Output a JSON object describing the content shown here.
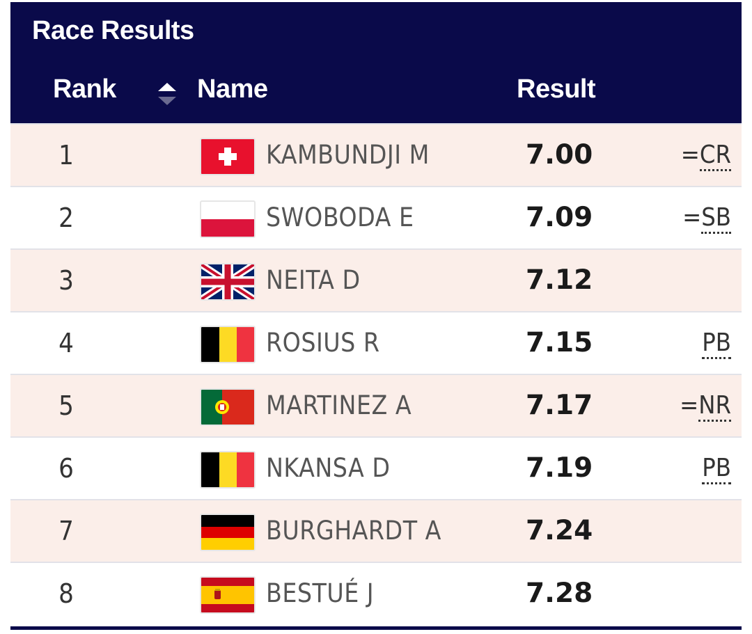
{
  "title": "Race Results",
  "columns": {
    "rank": "Rank",
    "name": "Name",
    "result": "Result"
  },
  "sort_icon": "sort-arrows-icon",
  "colors": {
    "header_bg": "#0a0a4a",
    "row_alt_bg": "#fbeee9"
  },
  "rows": [
    {
      "rank": "1",
      "flag": "switzerland-flag-icon",
      "name": "KAMBUNDJI M",
      "result": "7.00",
      "note_prefix": "=",
      "note": "CR"
    },
    {
      "rank": "2",
      "flag": "poland-flag-icon",
      "name": "SWOBODA E",
      "result": "7.09",
      "note_prefix": "=",
      "note": "SB"
    },
    {
      "rank": "3",
      "flag": "great-britain-flag-icon",
      "name": "NEITA D",
      "result": "7.12",
      "note_prefix": "",
      "note": ""
    },
    {
      "rank": "4",
      "flag": "belgium-flag-icon",
      "name": "ROSIUS R",
      "result": "7.15",
      "note_prefix": "",
      "note": "PB"
    },
    {
      "rank": "5",
      "flag": "portugal-flag-icon",
      "name": "MARTINEZ A",
      "result": "7.17",
      "note_prefix": "=",
      "note": "NR"
    },
    {
      "rank": "6",
      "flag": "belgium-flag-icon",
      "name": "NKANSA D",
      "result": "7.19",
      "note_prefix": "",
      "note": "PB"
    },
    {
      "rank": "7",
      "flag": "germany-flag-icon",
      "name": "BURGHARDT A",
      "result": "7.24",
      "note_prefix": "",
      "note": ""
    },
    {
      "rank": "8",
      "flag": "spain-flag-icon",
      "name": "BESTUÉ J",
      "result": "7.28",
      "note_prefix": "",
      "note": ""
    }
  ]
}
